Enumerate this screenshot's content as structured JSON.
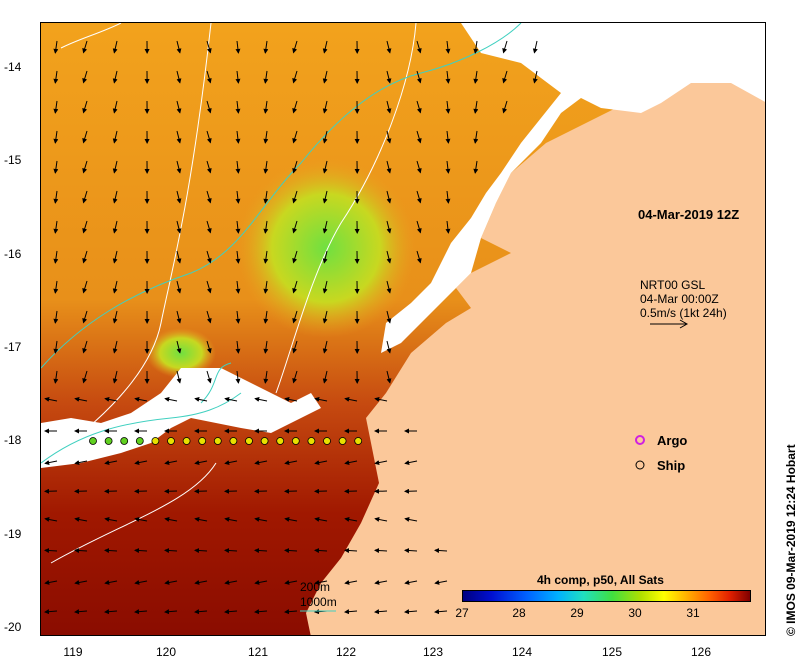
{
  "x_ticks": [
    "119",
    "120",
    "121",
    "122",
    "123",
    "124",
    "125",
    "126"
  ],
  "y_ticks": [
    "-14",
    "-15",
    "-16",
    "-17",
    "-18",
    "-19",
    "-20"
  ],
  "map_title": "04-Mar-2019 12Z",
  "current": {
    "source": "NRT00 GSL",
    "time": "04-Mar 00:00Z",
    "scale": "0.5m/s (1kt 24h)"
  },
  "legend": {
    "argo": "Argo",
    "ship": "Ship"
  },
  "contours": {
    "c200": "200m",
    "c1000": "1000m"
  },
  "colorbar": {
    "title": "4h comp, p50, All Sats",
    "ticks": [
      "27",
      "28",
      "29",
      "30",
      "31"
    ]
  },
  "credit": "© IMOS 09-Mar-2019 12:24 Hobart",
  "colors": {
    "land": "#fbc89a",
    "cloud": "#ffffff",
    "warm": "#f0a020",
    "hot": "#b01000",
    "cool": "#80e040",
    "ship_marker": "#e8e000",
    "argo_marker": "#d020e0",
    "isobath_1000": "#ffffff",
    "isobath_200": "#40d0c0"
  }
}
